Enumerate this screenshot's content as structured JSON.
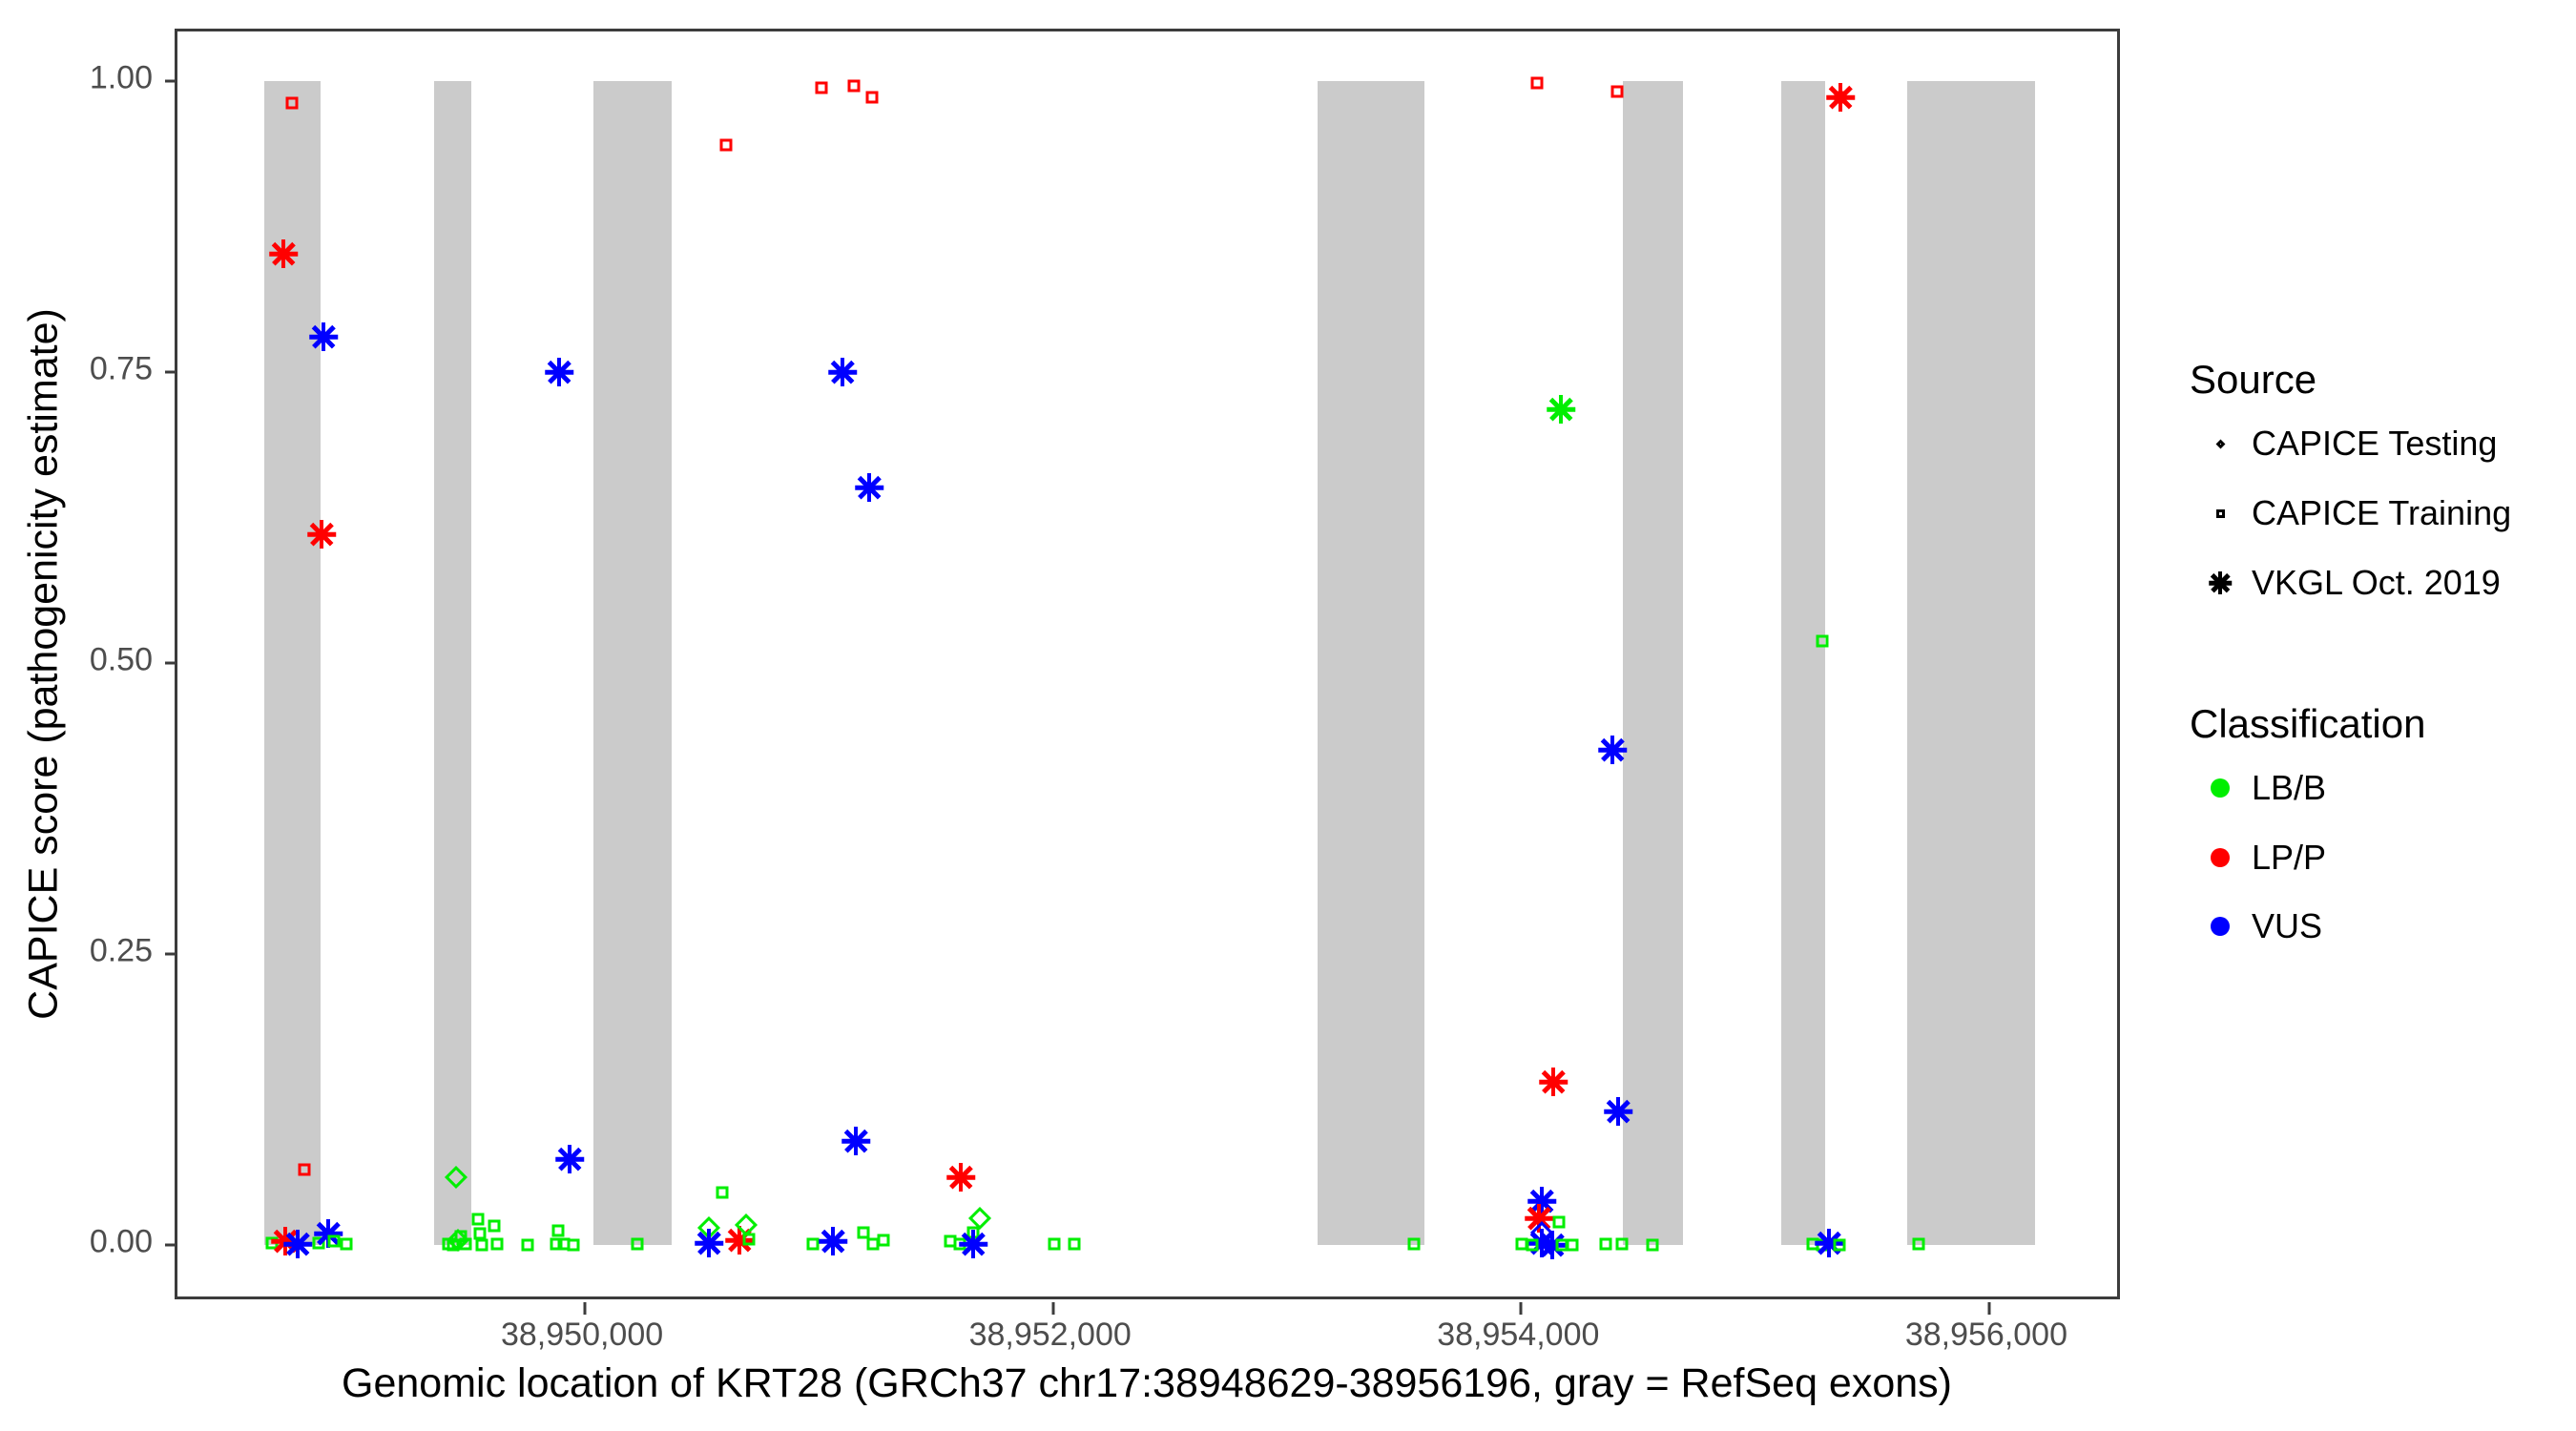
{
  "chart_data": {
    "type": "scatter",
    "title": "",
    "xlabel": "Genomic location of KRT28 (GRCh37 chr17:38948629-38956196, gray = RefSeq exons)",
    "ylabel": "CAPICE score (pathogenicity estimate)",
    "x_domain": [
      38948259,
      38956571
    ],
    "y_domain": [
      -0.0492,
      1.0426
    ],
    "x_ticks": [
      {
        "value": 38950000,
        "label": "38,950,000"
      },
      {
        "value": 38952000,
        "label": "38,952,000"
      },
      {
        "value": 38954000,
        "label": "38,954,000"
      },
      {
        "value": 38956000,
        "label": "38,956,000"
      }
    ],
    "y_ticks": [
      {
        "value": 0.0,
        "label": "0.00"
      },
      {
        "value": 0.25,
        "label": "0.25"
      },
      {
        "value": 0.5,
        "label": "0.50"
      },
      {
        "value": 0.75,
        "label": "0.75"
      },
      {
        "value": 1.0,
        "label": "1.00"
      }
    ],
    "grid": false,
    "exon_color": "#CBCBCB",
    "exons": [
      [
        38948629,
        38948871
      ],
      [
        38949356,
        38949515
      ],
      [
        38950037,
        38950371
      ],
      [
        38953130,
        38953587
      ],
      [
        38954435,
        38954692
      ],
      [
        38955111,
        38955299
      ],
      [
        38955650,
        38956196
      ]
    ],
    "class_colors": {
      "LB/B": "#00EE00",
      "LP/P": "#FF0000",
      "VUS": "#0000FF"
    },
    "source_markers": {
      "testing": "diamond",
      "training": "square",
      "vkgl": "asterisk"
    },
    "legend": {
      "position": "right",
      "source": {
        "title": "Source",
        "items": [
          {
            "label": "CAPICE Testing",
            "source": "testing"
          },
          {
            "label": "CAPICE Training",
            "source": "training"
          },
          {
            "label": "VKGL Oct. 2019",
            "source": "vkgl"
          }
        ]
      },
      "classification": {
        "title": "Classification",
        "items": [
          {
            "label": "LB/B",
            "class": "LB/B"
          },
          {
            "label": "LP/P",
            "class": "LP/P"
          },
          {
            "label": "VUS",
            "class": "VUS"
          }
        ]
      }
    },
    "points": [
      {
        "x": 38948748,
        "y": 0.981,
        "source": "training",
        "class": "LP/P"
      },
      {
        "x": 38948712,
        "y": 0.852,
        "source": "vkgl",
        "class": "LP/P"
      },
      {
        "x": 38948883,
        "y": 0.78,
        "source": "vkgl",
        "class": "VUS"
      },
      {
        "x": 38948875,
        "y": 0.611,
        "source": "vkgl",
        "class": "LP/P"
      },
      {
        "x": 38948802,
        "y": 0.065,
        "source": "training",
        "class": "LP/P"
      },
      {
        "x": 38948663,
        "y": 0.002,
        "source": "training",
        "class": "LB/B"
      },
      {
        "x": 38948720,
        "y": 0.003,
        "source": "vkgl",
        "class": "LP/P"
      },
      {
        "x": 38948773,
        "y": 0.001,
        "source": "vkgl",
        "class": "VUS"
      },
      {
        "x": 38948862,
        "y": 0.002,
        "source": "training",
        "class": "LB/B"
      },
      {
        "x": 38948903,
        "y": 0.01,
        "source": "vkgl",
        "class": "VUS"
      },
      {
        "x": 38948927,
        "y": 0.003,
        "source": "training",
        "class": "LB/B"
      },
      {
        "x": 38948980,
        "y": 0.001,
        "source": "training",
        "class": "LB/B"
      },
      {
        "x": 38949450,
        "y": 0.058,
        "source": "testing",
        "class": "LB/B"
      },
      {
        "x": 38949458,
        "y": 0.004,
        "source": "testing",
        "class": "LB/B"
      },
      {
        "x": 38949417,
        "y": 0.001,
        "source": "training",
        "class": "LB/B"
      },
      {
        "x": 38949438,
        "y": 0.0,
        "source": "training",
        "class": "LB/B"
      },
      {
        "x": 38949470,
        "y": 0.007,
        "source": "training",
        "class": "LB/B"
      },
      {
        "x": 38949490,
        "y": 0.001,
        "source": "training",
        "class": "LB/B"
      },
      {
        "x": 38949543,
        "y": 0.022,
        "source": "training",
        "class": "LB/B"
      },
      {
        "x": 38949613,
        "y": 0.016,
        "source": "training",
        "class": "LB/B"
      },
      {
        "x": 38949552,
        "y": 0.01,
        "source": "training",
        "class": "LB/B"
      },
      {
        "x": 38949560,
        "y": 0.0,
        "source": "training",
        "class": "LB/B"
      },
      {
        "x": 38949625,
        "y": 0.001,
        "source": "training",
        "class": "LB/B"
      },
      {
        "x": 38949755,
        "y": 0.0,
        "source": "training",
        "class": "LB/B"
      },
      {
        "x": 38949890,
        "y": 0.75,
        "source": "vkgl",
        "class": "VUS"
      },
      {
        "x": 38949935,
        "y": 0.074,
        "source": "vkgl",
        "class": "VUS"
      },
      {
        "x": 38949878,
        "y": 0.001,
        "source": "training",
        "class": "LB/B"
      },
      {
        "x": 38949886,
        "y": 0.012,
        "source": "training",
        "class": "LB/B"
      },
      {
        "x": 38949910,
        "y": 0.001,
        "source": "training",
        "class": "LB/B"
      },
      {
        "x": 38949951,
        "y": 0.0,
        "source": "training",
        "class": "LB/B"
      },
      {
        "x": 38950224,
        "y": 0.001,
        "source": "training",
        "class": "LB/B"
      },
      {
        "x": 38950603,
        "y": 0.945,
        "source": "training",
        "class": "LP/P"
      },
      {
        "x": 38951011,
        "y": 0.994,
        "source": "training",
        "class": "LP/P"
      },
      {
        "x": 38951150,
        "y": 0.996,
        "source": "training",
        "class": "LP/P"
      },
      {
        "x": 38951227,
        "y": 0.986,
        "source": "training",
        "class": "LP/P"
      },
      {
        "x": 38951101,
        "y": 0.75,
        "source": "vkgl",
        "class": "VUS"
      },
      {
        "x": 38951215,
        "y": 0.651,
        "source": "vkgl",
        "class": "VUS"
      },
      {
        "x": 38951158,
        "y": 0.089,
        "source": "vkgl",
        "class": "VUS"
      },
      {
        "x": 38951606,
        "y": 0.058,
        "source": "vkgl",
        "class": "LP/P"
      },
      {
        "x": 38950587,
        "y": 0.045,
        "source": "training",
        "class": "LB/B"
      },
      {
        "x": 38950530,
        "y": 0.015,
        "source": "testing",
        "class": "LB/B"
      },
      {
        "x": 38950530,
        "y": 0.002,
        "source": "vkgl",
        "class": "VUS"
      },
      {
        "x": 38950660,
        "y": 0.004,
        "source": "vkgl",
        "class": "LP/P"
      },
      {
        "x": 38950689,
        "y": 0.017,
        "source": "testing",
        "class": "LB/B"
      },
      {
        "x": 38950701,
        "y": 0.005,
        "source": "training",
        "class": "LB/B"
      },
      {
        "x": 38950974,
        "y": 0.001,
        "source": "training",
        "class": "LB/B"
      },
      {
        "x": 38951060,
        "y": 0.003,
        "source": "vkgl",
        "class": "VUS"
      },
      {
        "x": 38951190,
        "y": 0.011,
        "source": "training",
        "class": "LB/B"
      },
      {
        "x": 38951231,
        "y": 0.001,
        "source": "training",
        "class": "LB/B"
      },
      {
        "x": 38951276,
        "y": 0.004,
        "source": "training",
        "class": "LB/B"
      },
      {
        "x": 38951561,
        "y": 0.003,
        "source": "training",
        "class": "LB/B"
      },
      {
        "x": 38951602,
        "y": 0.001,
        "source": "training",
        "class": "LB/B"
      },
      {
        "x": 38951688,
        "y": 0.023,
        "source": "testing",
        "class": "LB/B"
      },
      {
        "x": 38951659,
        "y": 0.011,
        "source": "training",
        "class": "LB/B"
      },
      {
        "x": 38951659,
        "y": 0.001,
        "source": "vkgl",
        "class": "VUS"
      },
      {
        "x": 38952006,
        "y": 0.001,
        "source": "training",
        "class": "LB/B"
      },
      {
        "x": 38952091,
        "y": 0.001,
        "source": "training",
        "class": "LB/B"
      },
      {
        "x": 38953542,
        "y": 0.001,
        "source": "training",
        "class": "LB/B"
      },
      {
        "x": 38954068,
        "y": 0.998,
        "source": "training",
        "class": "LP/P"
      },
      {
        "x": 38954411,
        "y": 0.991,
        "source": "training",
        "class": "LP/P"
      },
      {
        "x": 38954170,
        "y": 0.718,
        "source": "vkgl",
        "class": "LB/B"
      },
      {
        "x": 38954390,
        "y": 0.425,
        "source": "vkgl",
        "class": "VUS"
      },
      {
        "x": 38954137,
        "y": 0.14,
        "source": "vkgl",
        "class": "LP/P"
      },
      {
        "x": 38954415,
        "y": 0.115,
        "source": "vkgl",
        "class": "VUS"
      },
      {
        "x": 38954088,
        "y": 0.038,
        "source": "vkgl",
        "class": "VUS"
      },
      {
        "x": 38954076,
        "y": 0.023,
        "source": "vkgl",
        "class": "LP/P"
      },
      {
        "x": 38954161,
        "y": 0.02,
        "source": "training",
        "class": "LB/B"
      },
      {
        "x": 38954088,
        "y": 0.011,
        "source": "testing",
        "class": "VUS"
      },
      {
        "x": 38954088,
        "y": 0.002,
        "source": "vkgl",
        "class": "VUS"
      },
      {
        "x": 38954133,
        "y": 0.0,
        "source": "vkgl",
        "class": "VUS"
      },
      {
        "x": 38954002,
        "y": 0.001,
        "source": "training",
        "class": "LB/B"
      },
      {
        "x": 38954047,
        "y": 0.0,
        "source": "training",
        "class": "LB/B"
      },
      {
        "x": 38954174,
        "y": 0.0,
        "source": "training",
        "class": "LB/B"
      },
      {
        "x": 38954219,
        "y": 0.0,
        "source": "training",
        "class": "LB/B"
      },
      {
        "x": 38954361,
        "y": 0.001,
        "source": "training",
        "class": "LB/B"
      },
      {
        "x": 38954431,
        "y": 0.001,
        "source": "training",
        "class": "LB/B"
      },
      {
        "x": 38954561,
        "y": 0.0,
        "source": "training",
        "class": "LB/B"
      },
      {
        "x": 38955287,
        "y": 0.519,
        "source": "training",
        "class": "LB/B"
      },
      {
        "x": 38955364,
        "y": 0.986,
        "source": "training",
        "class": "LP/P"
      },
      {
        "x": 38955364,
        "y": 0.986,
        "source": "vkgl",
        "class": "LP/P"
      },
      {
        "x": 38955246,
        "y": 0.001,
        "source": "training",
        "class": "LB/B"
      },
      {
        "x": 38955287,
        "y": 0.0,
        "source": "training",
        "class": "LB/B"
      },
      {
        "x": 38955315,
        "y": 0.002,
        "source": "vkgl",
        "class": "VUS"
      },
      {
        "x": 38955360,
        "y": 0.0,
        "source": "training",
        "class": "LB/B"
      },
      {
        "x": 38955699,
        "y": 0.001,
        "source": "training",
        "class": "LB/B"
      }
    ]
  }
}
